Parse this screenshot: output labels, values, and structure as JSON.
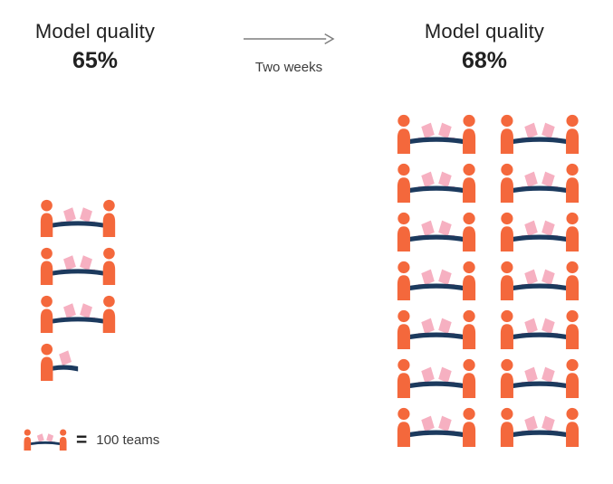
{
  "before": {
    "title": "Model quality",
    "value": "65%",
    "full_icons": 3,
    "half_icons": 1
  },
  "transition": {
    "label": "Two weeks"
  },
  "after": {
    "title": "Model quality",
    "value": "68%",
    "full_icons": 14,
    "half_icons": 0,
    "columns": 2
  },
  "legend": {
    "equals": "=",
    "label": "100 teams"
  },
  "icons": {
    "team": "team-icon",
    "half": "half-team-icon",
    "arrow": "right-arrow-icon"
  },
  "colors": {
    "person": "#F4683C",
    "table": "#1C3A5E",
    "laptop": "#F6B0C1",
    "arrow": "#7D7D7D",
    "text": "#212121",
    "muted": "#3C3C3C"
  },
  "chart_data": {
    "type": "pictograph",
    "units_per_icon": 100,
    "unit_label": "100 teams",
    "transition_label": "Two weeks",
    "series": [
      {
        "label": "Model quality",
        "value_pct": 65,
        "icons": 3.5,
        "teams": 350
      },
      {
        "label": "Model quality",
        "value_pct": 68,
        "icons": 14,
        "teams": 1400
      }
    ],
    "legend_position": "bottom-left"
  }
}
